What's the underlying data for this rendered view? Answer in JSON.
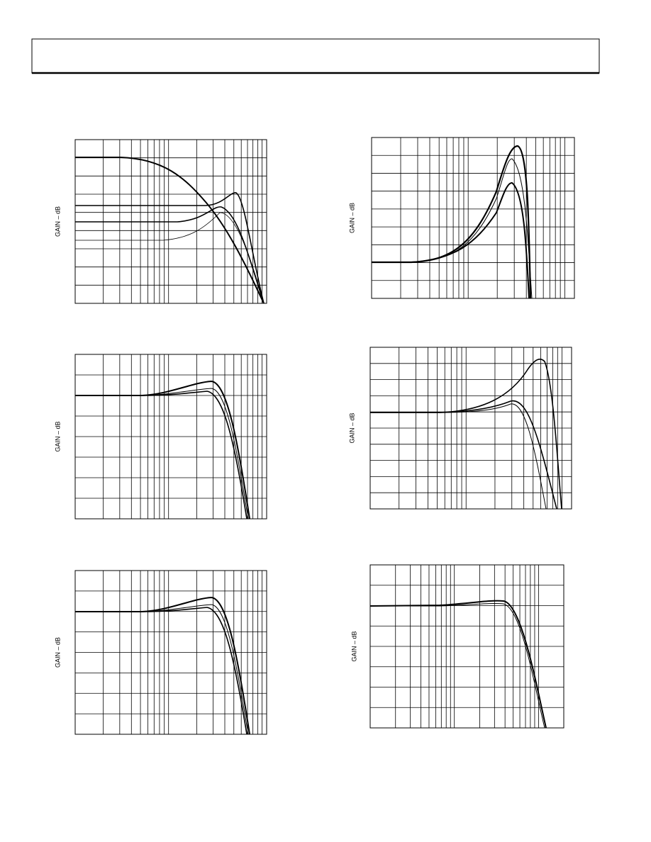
{
  "figures": [
    {
      "y_label": "GAIN – dB"
    },
    {
      "y_label": "GAIN – dB"
    },
    {
      "y_label": "GAIN – dB"
    },
    {
      "y_label": "GAIN – dB"
    },
    {
      "y_label": "GAIN – dB"
    },
    {
      "y_label": "GAIN – dB"
    }
  ]
}
